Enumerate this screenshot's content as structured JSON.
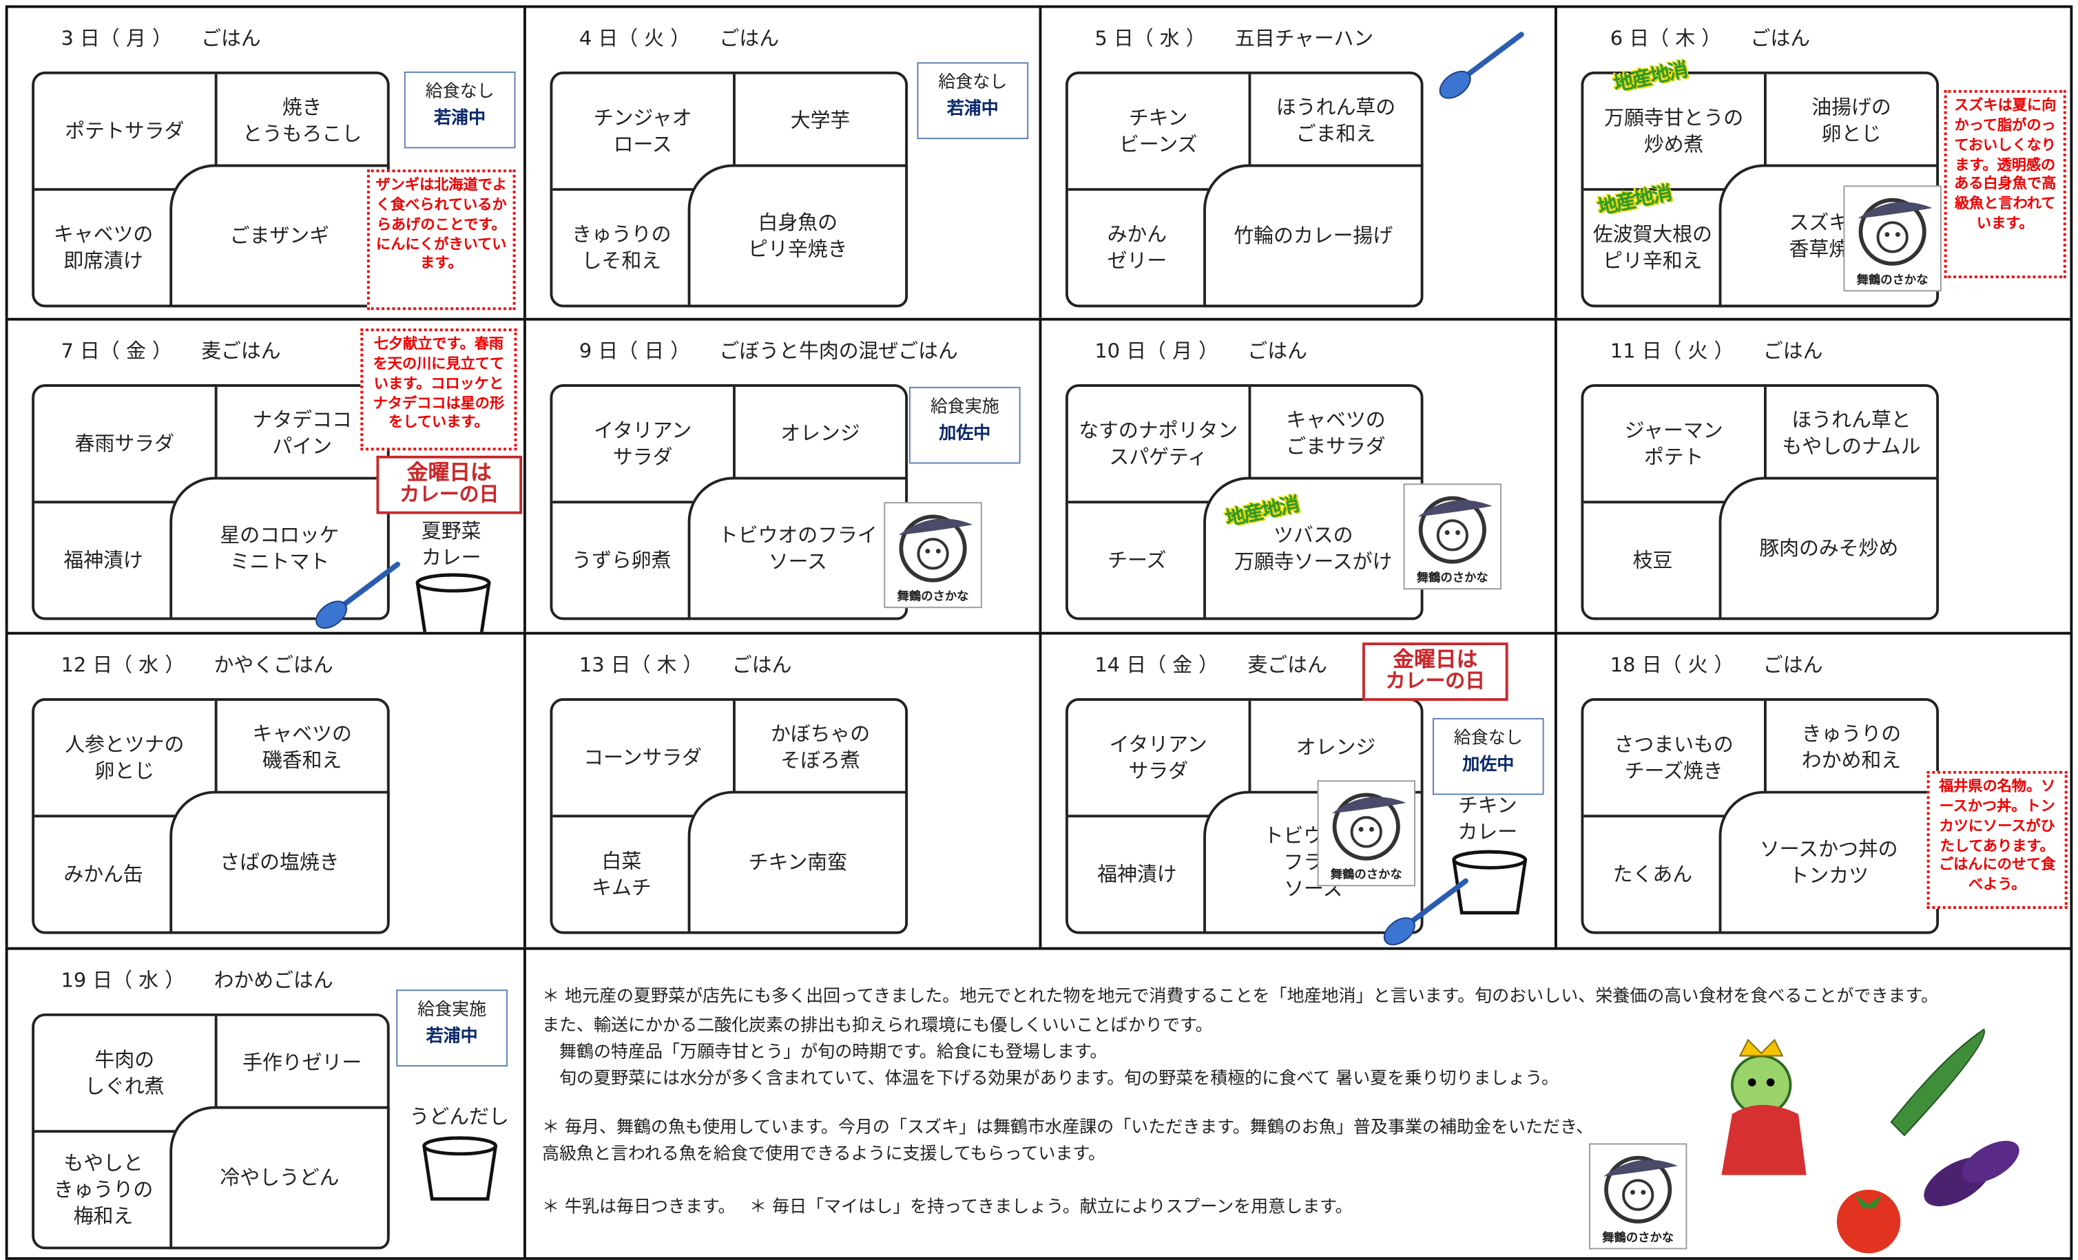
{
  "cells": [
    {
      "heading": "3 日（ 月 ）",
      "rice": "ごはん",
      "dishes": {
        "tl": "ポテトサラダ",
        "tr": "焼き\nとうもろこし",
        "bl": "キャベツの\n即席漬け",
        "main": "ごまザンギ"
      },
      "side": [
        "給食なし",
        "若浦中"
      ],
      "note": "ザンギは北海道でよく食べられているからあげのことです。にんにくがきいています。"
    },
    {
      "heading": "4 日（ 火 ）",
      "rice": "ごはん",
      "dishes": {
        "tl": "チンジャオ\nロース",
        "tr": "大学芋",
        "bl": "きゅうりの\nしそ和え",
        "main": "白身魚の\nピリ辛焼き"
      },
      "side": [
        "給食なし",
        "若浦中"
      ]
    },
    {
      "heading": "5 日（ 水 ）",
      "rice": "五目チャーハン",
      "dishes": {
        "tl": "チキン\nビーンズ",
        "tr": "ほうれん草の\nごま和え",
        "bl": "みかん\nゼリー",
        "main": "竹輪のカレー揚げ"
      }
    },
    {
      "heading": "6 日（ 木 ）",
      "rice": "ごはん",
      "dishes": {
        "tl": "万願寺甘とうの\n炒め煮",
        "tr": "油揚げの\n卵とじ",
        "bl": "佐波賀大根の\nピリ辛和え",
        "main": "スズキの\n香草焼き"
      },
      "note": "スズキは夏に向かって脂がのっておいしくなります。透明感のある白身魚で高級魚と言われています。",
      "stamps": [
        "地産地消",
        "地産地消"
      ],
      "logo": "舞鶴のさかな"
    },
    {
      "heading": "7 日（ 金 ）",
      "rice": "麦ごはん",
      "dishes": {
        "tl": "春雨サラダ",
        "tr": "ナタデココ\nパイン",
        "bl": "福神漬け",
        "main": "星のコロッケ\nミニトマト"
      },
      "extra": "夏野菜\nカレー",
      "note": "七夕献立です。春雨を天の川に見立てています。コロッケとナタデココは星の形をしています。",
      "badge": [
        "金曜日は",
        "カレーの日"
      ]
    },
    {
      "heading": "9 日（ 日 ）",
      "rice": "ごぼうと牛肉の混ぜごはん",
      "dishes": {
        "tl": "イタリアン\nサラダ",
        "tr": "オレンジ",
        "bl": "うずら卵煮",
        "main": "トビウオのフライ\nソース"
      },
      "side": [
        "給食実施",
        "加佐中"
      ],
      "logo": "舞鶴のさかな"
    },
    {
      "heading": "10 日（ 月 ）",
      "rice": "ごはん",
      "dishes": {
        "tl": "なすのナポリタン\nスパゲティ",
        "tr": "キャベツの\nごまサラダ",
        "bl": "チーズ",
        "main": "ツバスの\n万願寺ソースがけ"
      },
      "stamps": [
        "地産地消"
      ],
      "logo": "舞鶴のさかな"
    },
    {
      "heading": "11 日（ 火 ）",
      "rice": "ごはん",
      "dishes": {
        "tl": "ジャーマン\nポテト",
        "tr": "ほうれん草と\nもやしのナムル",
        "bl": "枝豆",
        "main": "豚肉のみそ炒め"
      }
    },
    {
      "heading": "12 日（ 水 ）",
      "rice": "かやくごはん",
      "dishes": {
        "tl": "人参とツナの\n卵とじ",
        "tr": "キャベツの\n磯香和え",
        "bl": "みかん缶",
        "main": "さばの塩焼き"
      }
    },
    {
      "heading": "13 日（ 木 ）",
      "rice": "ごはん",
      "dishes": {
        "tl": "コーンサラダ",
        "tr": "かぼちゃの\nそぼろ煮",
        "bl": "白菜\nキムチ",
        "main": "チキン南蛮"
      }
    },
    {
      "heading": "14 日（ 金 ）",
      "rice": "麦ごはん",
      "dishes": {
        "tl": "イタリアン\nサラダ",
        "tr": "オレンジ",
        "bl": "福神漬け",
        "main": "トビウオの\nフライ\nソース"
      },
      "side": [
        "給食なし",
        "加佐中"
      ],
      "extra": "チキン\nカレー",
      "badge": [
        "金曜日は",
        "カレーの日"
      ],
      "logo": "舞鶴のさかな"
    },
    {
      "heading": "18 日（ 火 ）",
      "rice": "ごはん",
      "dishes": {
        "tl": "さつまいもの\nチーズ焼き",
        "tr": "きゅうりの\nわかめ和え",
        "bl": "たくあん",
        "main": "ソースかつ丼の\nトンカツ"
      },
      "note": "福井県の名物。ソースかつ丼。トンカツにソースがひたしてあります。ごはんにのせて食べよう。"
    },
    {
      "heading": "19 日（ 水 ）",
      "rice": "わかめごはん",
      "dishes": {
        "tl": "牛肉の\nしぐれ煮",
        "tr": "手作りゼリー",
        "bl": "もやしと\nきゅうりの\n梅和え",
        "main": "冷やしうどん"
      },
      "side": [
        "給食実施",
        "若浦中"
      ],
      "extra": "うどんだし"
    }
  ],
  "notes": {
    "lines": [
      "＊ 地元産の夏野菜が店先にも多く出回ってきました。地元でとれた物を地元で消費することを「地産地消」と言います。旬のおいしい、栄養価の高い食材を食べることができます。",
      "また、輸送にかかる二酸化炭素の排出も抑えられ環境にも優しくいいことばかりです。",
      "　舞鶴の特産品「万願寺甘とう」が旬の時期です。給食にも登場します。",
      "　旬の夏野菜には水分が多く含まれていて、体温を下げる効果があります。旬の野菜を積極的に食べて 暑い夏を乗り切りましょう。",
      "＊ 毎月、舞鶴の魚も使用しています。今月の「スズキ」は舞鶴市水産課の「いただきます。舞鶴のお魚」普及事業の補助金をいただき、",
      "高級魚と言われる魚を給食で使用できるように支援してもらっています。",
      "＊ 牛乳は毎日つきます。　 ＊ 毎日「マイはし」を持ってきましょう。献立によりスプーンを用意します。"
    ],
    "logo": "舞鶴のさかな"
  }
}
